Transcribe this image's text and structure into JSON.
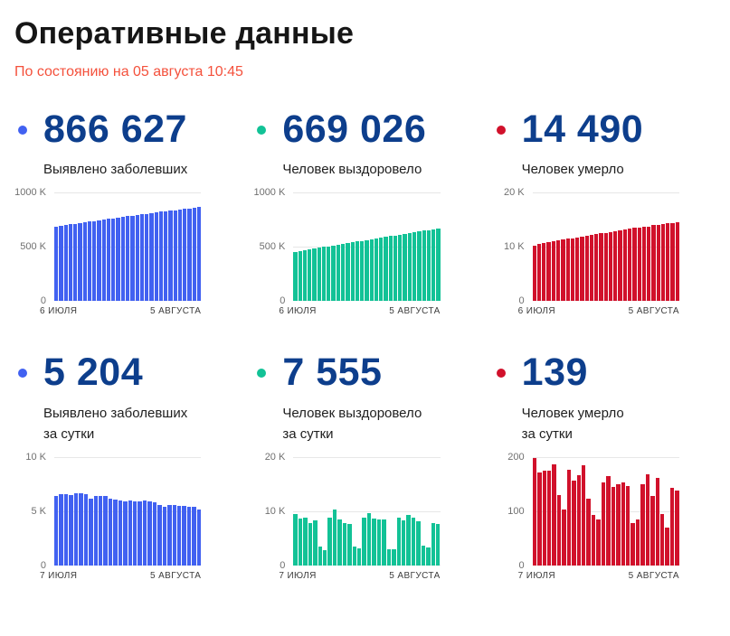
{
  "page": {
    "title": "Оперативные данные",
    "subtitle": "По состоянию на 05 августа 10:45"
  },
  "colors": {
    "title_text": "#161616",
    "subtitle_red": "#f4513c",
    "stat_number_navy": "#0d3e8c",
    "accent_blue": "#4161f1",
    "accent_green": "#12c296",
    "accent_red": "#d1112b",
    "gridline_gray": "#e7e7e7",
    "y_tick_gray": "#707070",
    "x_tick_dark": "#3c3c3c"
  },
  "cards": [
    {
      "id": "confirmed-total",
      "value": "866 627",
      "label_line1": "Выявлено заболевших",
      "label_line2": "",
      "dot_color": "#4161f1"
    },
    {
      "id": "recovered-total",
      "value": "669 026",
      "label_line1": "Человек выздоровело",
      "label_line2": "",
      "dot_color": "#12c296"
    },
    {
      "id": "deaths-total",
      "value": "14 490",
      "label_line1": "Человек умерло",
      "label_line2": "",
      "dot_color": "#d1112b"
    },
    {
      "id": "confirmed-daily",
      "value": "5 204",
      "label_line1": "Выявлено заболевших",
      "label_line2": "за сутки",
      "dot_color": "#4161f1"
    },
    {
      "id": "recovered-daily",
      "value": "7 555",
      "label_line1": "Человек выздоровело",
      "label_line2": "за сутки",
      "dot_color": "#12c296"
    },
    {
      "id": "deaths-daily",
      "value": "139",
      "label_line1": "Человек умерло",
      "label_line2": "за сутки",
      "dot_color": "#d1112b"
    }
  ],
  "chart_data": [
    {
      "type": "bar",
      "title": "Выявлено заболевших",
      "color": "#4161f1",
      "unit": "thousands",
      "ylim": [
        0,
        1000
      ],
      "y_ticks": [
        "1000 K",
        "500 K",
        "0"
      ],
      "x_start_label": "6 ИЮЛЯ",
      "x_end_label": "5 АВГУСТА",
      "grid": true,
      "values": [
        687.9,
        694.5,
        701.1,
        707.7,
        714.2,
        720.8,
        727.5,
        734.1,
        740.3,
        746.7,
        753.2,
        759.6,
        765.8,
        771.9,
        777.9,
        783.8,
        789.8,
        795.7,
        801.6,
        807.5,
        813.3,
        819.0,
        824.4,
        829.9,
        835.5,
        841.0,
        846.5,
        851.9,
        857.3,
        862.5,
        866.6
      ]
    },
    {
      "type": "bar",
      "title": "Человек выздоровело",
      "color": "#12c296",
      "unit": "thousands",
      "ylim": [
        0,
        1000
      ],
      "y_ticks": [
        "1000 K",
        "500 K",
        "0"
      ],
      "x_start_label": "6 ИЮЛЯ",
      "x_end_label": "5 АВГУСТА",
      "grid": true,
      "values": [
        454.3,
        463.8,
        472.5,
        481.3,
        489.1,
        497.5,
        501.0,
        503.8,
        512.7,
        523.1,
        531.6,
        539.4,
        547.0,
        550.5,
        553.7,
        562.6,
        572.2,
        580.7,
        589.2,
        597.7,
        600.7,
        603.7,
        612.6,
        620.8,
        630.1,
        638.9,
        647.1,
        650.8,
        654.2,
        662.1,
        669.0
      ]
    },
    {
      "type": "bar",
      "title": "Человек умерло",
      "color": "#d1112b",
      "unit": "thousands",
      "ylim": [
        0,
        20
      ],
      "y_ticks": [
        "20 K",
        "10 K",
        "0"
      ],
      "x_start_label": "6 ИЮЛЯ",
      "x_end_label": "5 АВГУСТА",
      "grid": true,
      "values": [
        10.3,
        10.5,
        10.67,
        10.84,
        11.02,
        11.19,
        11.38,
        11.51,
        11.61,
        11.79,
        11.94,
        12.11,
        12.3,
        12.42,
        12.51,
        12.6,
        12.75,
        12.91,
        13.06,
        13.21,
        13.36,
        13.51,
        13.59,
        13.67,
        13.82,
        13.99,
        14.12,
        14.28,
        14.38,
        14.45,
        14.49
      ]
    },
    {
      "type": "bar",
      "title": "Выявлено заболевших за сутки",
      "color": "#4161f1",
      "unit": "thousands",
      "ylim": [
        0,
        10
      ],
      "y_ticks": [
        "10 K",
        "5 K",
        "0"
      ],
      "x_start_label": "7 ИЮЛЯ",
      "x_end_label": "5 АВГУСТА",
      "grid": true,
      "values": [
        6.4,
        6.6,
        6.6,
        6.5,
        6.7,
        6.7,
        6.6,
        6.2,
        6.4,
        6.4,
        6.4,
        6.2,
        6.1,
        6.0,
        5.9,
        6.0,
        5.9,
        5.9,
        6.0,
        5.9,
        5.8,
        5.6,
        5.4,
        5.6,
        5.6,
        5.5,
        5.5,
        5.4,
        5.4,
        5.2
      ]
    },
    {
      "type": "bar",
      "title": "Человек выздоровело за сутки",
      "color": "#12c296",
      "unit": "thousands",
      "ylim": [
        0,
        20
      ],
      "y_ticks": [
        "20 K",
        "10 K",
        "0"
      ],
      "x_start_label": "7 ИЮЛЯ",
      "x_end_label": "5 АВГУСТА",
      "grid": true,
      "values": [
        9.5,
        8.7,
        8.8,
        7.8,
        8.4,
        3.5,
        2.8,
        8.9,
        10.4,
        8.5,
        7.9,
        7.7,
        3.5,
        3.2,
        8.9,
        9.6,
        8.6,
        8.5,
        8.5,
        3.0,
        3.0,
        8.9,
        8.3,
        9.3,
        8.8,
        8.2,
        3.7,
        3.4,
        7.9,
        7.6
      ]
    },
    {
      "type": "bar",
      "title": "Человек умерло за сутки",
      "color": "#d1112b",
      "unit": "count",
      "ylim": [
        0,
        200
      ],
      "y_ticks": [
        "200",
        "100",
        "0"
      ],
      "x_start_label": "7 ИЮЛЯ",
      "x_end_label": "5 АВГУСТА",
      "grid": true,
      "values": [
        198,
        172,
        175,
        175,
        187,
        130,
        104,
        176,
        156,
        167,
        185,
        123,
        93,
        85,
        153,
        165,
        145,
        150,
        153,
        146,
        78,
        85,
        150,
        168,
        129,
        161,
        95,
        70,
        144,
        139
      ]
    }
  ]
}
